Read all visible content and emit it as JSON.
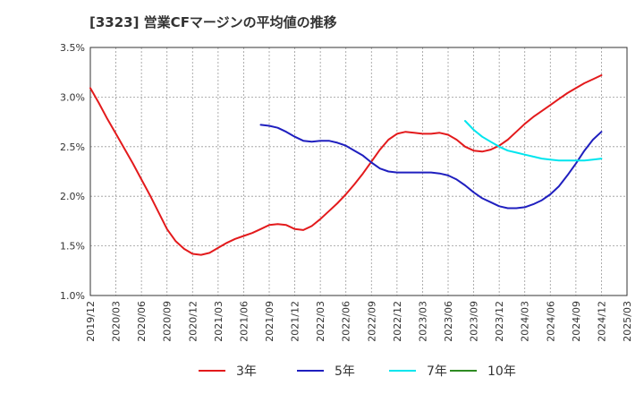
{
  "chart_data": {
    "type": "line",
    "title": "[3323]  営業CFマージンの平均値の推移",
    "xlabel": "",
    "ylabel": "",
    "ylim": [
      1.0,
      3.5
    ],
    "yticks": [
      "1.0%",
      "1.5%",
      "2.0%",
      "2.5%",
      "3.0%",
      "3.5%"
    ],
    "xticks": [
      "2019/12",
      "2020/03",
      "2020/06",
      "2020/09",
      "2020/12",
      "2021/03",
      "2021/06",
      "2021/09",
      "2021/12",
      "2022/03",
      "2022/06",
      "2022/09",
      "2022/12",
      "2023/03",
      "2023/06",
      "2023/09",
      "2023/12",
      "2024/03",
      "2024/06",
      "2024/09",
      "2024/12",
      "2025/03"
    ],
    "grid": true,
    "legend_position": "bottom",
    "series": [
      {
        "name": "3年",
        "color": "#e31a1c",
        "x": [
          "2019/12",
          "2020/01",
          "2020/02",
          "2020/03",
          "2020/04",
          "2020/05",
          "2020/06",
          "2020/07",
          "2020/08",
          "2020/09",
          "2020/10",
          "2020/11",
          "2020/12",
          "2021/01",
          "2021/02",
          "2021/03",
          "2021/04",
          "2021/05",
          "2021/06",
          "2021/07",
          "2021/08",
          "2021/09",
          "2021/10",
          "2021/11",
          "2021/12",
          "2022/01",
          "2022/02",
          "2022/03",
          "2022/04",
          "2022/05",
          "2022/06",
          "2022/07",
          "2022/08",
          "2022/09",
          "2022/10",
          "2022/11",
          "2022/12",
          "2023/01",
          "2023/02",
          "2023/03",
          "2023/04",
          "2023/05",
          "2023/06",
          "2023/07",
          "2023/08",
          "2023/09",
          "2023/10",
          "2023/11",
          "2023/12",
          "2024/01",
          "2024/02",
          "2024/03",
          "2024/04",
          "2024/05",
          "2024/06",
          "2024/07",
          "2024/08",
          "2024/09",
          "2024/10",
          "2024/11",
          "2024/12"
        ],
        "values": [
          3.09,
          2.94,
          2.78,
          2.63,
          2.48,
          2.33,
          2.17,
          2.01,
          1.84,
          1.67,
          1.55,
          1.47,
          1.42,
          1.41,
          1.43,
          1.48,
          1.53,
          1.57,
          1.6,
          1.63,
          1.67,
          1.71,
          1.72,
          1.71,
          1.67,
          1.66,
          1.7,
          1.77,
          1.85,
          1.93,
          2.02,
          2.12,
          2.23,
          2.35,
          2.47,
          2.57,
          2.63,
          2.65,
          2.64,
          2.63,
          2.63,
          2.64,
          2.62,
          2.57,
          2.5,
          2.46,
          2.45,
          2.47,
          2.51,
          2.57,
          2.65,
          2.73,
          2.8,
          2.86,
          2.92,
          2.98,
          3.04,
          3.09,
          3.14,
          3.18,
          3.22
        ]
      },
      {
        "name": "5年",
        "color": "#1f1fbf",
        "x": [
          "2021/08",
          "2021/09",
          "2021/10",
          "2021/11",
          "2021/12",
          "2022/01",
          "2022/02",
          "2022/03",
          "2022/04",
          "2022/05",
          "2022/06",
          "2022/07",
          "2022/08",
          "2022/09",
          "2022/10",
          "2022/11",
          "2022/12",
          "2023/01",
          "2023/02",
          "2023/03",
          "2023/04",
          "2023/05",
          "2023/06",
          "2023/07",
          "2023/08",
          "2023/09",
          "2023/10",
          "2023/11",
          "2023/12",
          "2024/01",
          "2024/02",
          "2024/03",
          "2024/04",
          "2024/05",
          "2024/06",
          "2024/07",
          "2024/08",
          "2024/09",
          "2024/10",
          "2024/11",
          "2024/12"
        ],
        "values": [
          2.72,
          2.71,
          2.69,
          2.65,
          2.6,
          2.56,
          2.55,
          2.56,
          2.56,
          2.54,
          2.51,
          2.46,
          2.41,
          2.34,
          2.28,
          2.25,
          2.24,
          2.24,
          2.24,
          2.24,
          2.24,
          2.23,
          2.21,
          2.17,
          2.11,
          2.04,
          1.98,
          1.94,
          1.9,
          1.88,
          1.88,
          1.89,
          1.92,
          1.96,
          2.02,
          2.1,
          2.21,
          2.33,
          2.46,
          2.57,
          2.65
        ]
      },
      {
        "name": "7年",
        "color": "#00e5ee",
        "x": [
          "2023/08",
          "2023/09",
          "2023/10",
          "2023/11",
          "2023/12",
          "2024/01",
          "2024/02",
          "2024/03",
          "2024/04",
          "2024/05",
          "2024/06",
          "2024/07",
          "2024/08",
          "2024/09",
          "2024/10",
          "2024/11",
          "2024/12"
        ],
        "values": [
          2.76,
          2.67,
          2.6,
          2.55,
          2.5,
          2.46,
          2.44,
          2.42,
          2.4,
          2.38,
          2.37,
          2.36,
          2.36,
          2.36,
          2.36,
          2.37,
          2.38
        ]
      },
      {
        "name": "10年",
        "color": "#2e8b22",
        "x": [],
        "values": []
      }
    ]
  }
}
